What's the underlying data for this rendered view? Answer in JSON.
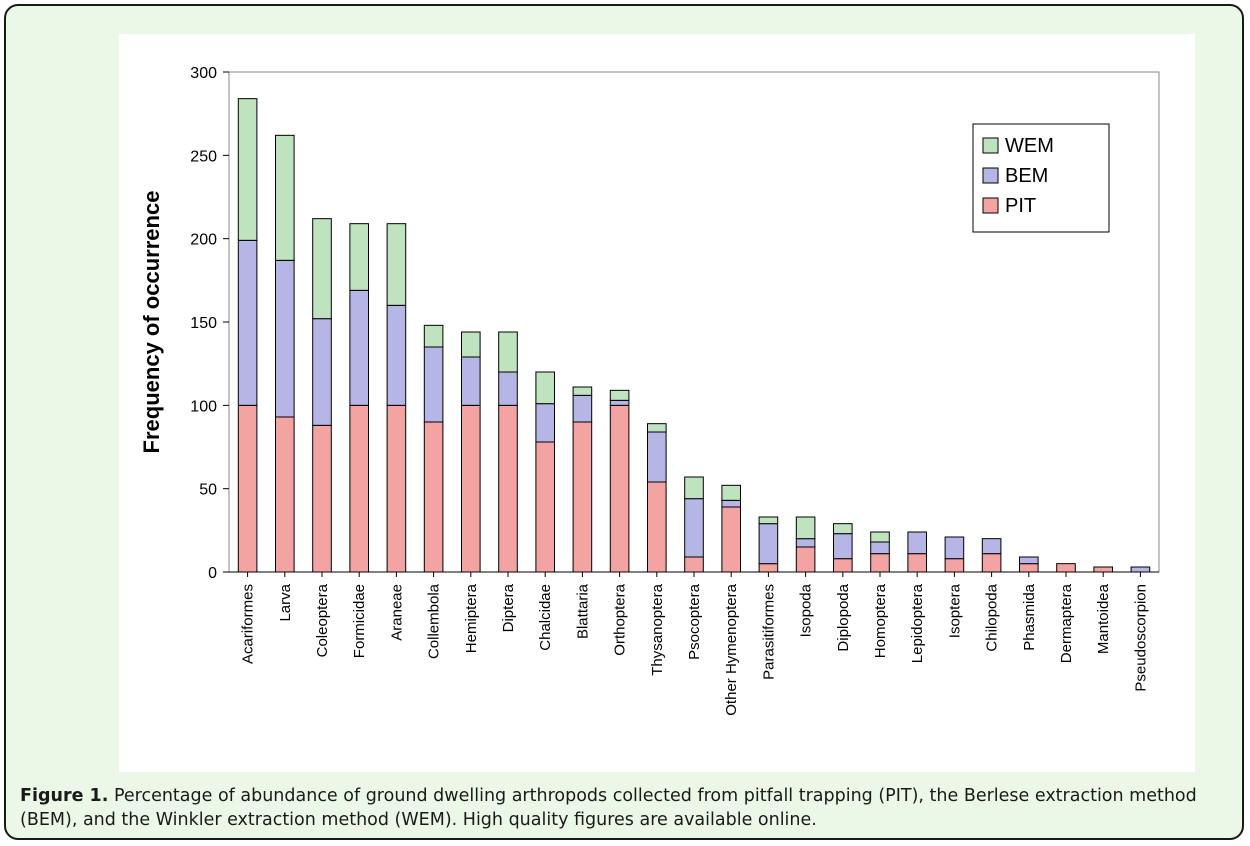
{
  "figure": {
    "caption_label": "Figure 1.",
    "caption_text": "Percentage of abundance of ground dwelling arthropods collected from pitfall trapping (PIT), the Berlese extraction method (BEM), and the Winkler extraction method (WEM). High quality figures are available online."
  },
  "chart_data": {
    "type": "bar",
    "stacked": true,
    "title": "",
    "xlabel": "",
    "ylabel": "Frequency of occurrence",
    "ylim": [
      0,
      300
    ],
    "yticks": [
      0,
      50,
      100,
      150,
      200,
      250,
      300
    ],
    "grid": false,
    "legend_position": "top-right",
    "categories": [
      "Acariformes",
      "Larva",
      "Coleoptera",
      "Formicidae",
      "Araneae",
      "Collembola",
      "Hemiptera",
      "Diptera",
      "Chalcidae",
      "Blattaria",
      "Orthoptera",
      "Thysanoptera",
      "Psocoptera",
      "Other Hymenoptera",
      "Parasitiformes",
      "Isopoda",
      "Diplopoda",
      "Homoptera",
      "Lepidoptera",
      "Isoptera",
      "Chilopoda",
      "Phasmida",
      "Dermaptera",
      "Mantoidea",
      "Pseudoscorpion"
    ],
    "series": [
      {
        "name": "PIT",
        "color": "#f4a3a3",
        "values": [
          100,
          93,
          88,
          100,
          100,
          90,
          100,
          100,
          78,
          90,
          100,
          54,
          9,
          39,
          5,
          15,
          8,
          11,
          11,
          8,
          11,
          5,
          5,
          3,
          0
        ]
      },
      {
        "name": "BEM",
        "color": "#b5b5e6",
        "values": [
          99,
          94,
          64,
          69,
          60,
          45,
          29,
          20,
          23,
          16,
          3,
          30,
          35,
          4,
          24,
          5,
          15,
          7,
          13,
          13,
          9,
          4,
          0,
          0,
          3
        ]
      },
      {
        "name": "WEM",
        "color": "#bfe3bf",
        "values": [
          85,
          75,
          60,
          40,
          49,
          13,
          15,
          24,
          19,
          5,
          6,
          5,
          13,
          9,
          4,
          13,
          6,
          6,
          0,
          0,
          0,
          0,
          0,
          0,
          0
        ]
      }
    ],
    "legend_order": [
      "WEM",
      "BEM",
      "PIT"
    ]
  }
}
